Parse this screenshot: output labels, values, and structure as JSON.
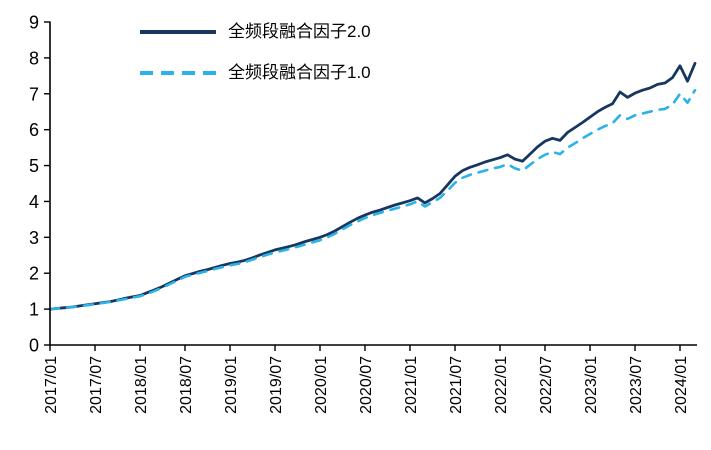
{
  "chart_data": {
    "type": "line",
    "title": "",
    "xlabel": "",
    "ylabel": "",
    "ylim": [
      0,
      9
    ],
    "y_ticks": [
      0,
      1,
      2,
      3,
      4,
      5,
      6,
      7,
      8,
      9
    ],
    "grid": false,
    "legend_position": "top-left",
    "axis_color": "#000000",
    "x": [
      "2017/01",
      "2017/02",
      "2017/03",
      "2017/04",
      "2017/05",
      "2017/06",
      "2017/07",
      "2017/08",
      "2017/09",
      "2017/10",
      "2017/11",
      "2017/12",
      "2018/01",
      "2018/02",
      "2018/03",
      "2018/04",
      "2018/05",
      "2018/06",
      "2018/07",
      "2018/08",
      "2018/09",
      "2018/10",
      "2018/11",
      "2018/12",
      "2019/01",
      "2019/02",
      "2019/03",
      "2019/04",
      "2019/05",
      "2019/06",
      "2019/07",
      "2019/08",
      "2019/09",
      "2019/10",
      "2019/11",
      "2019/12",
      "2020/01",
      "2020/02",
      "2020/03",
      "2020/04",
      "2020/05",
      "2020/06",
      "2020/07",
      "2020/08",
      "2020/09",
      "2020/10",
      "2020/11",
      "2020/12",
      "2021/01",
      "2021/02",
      "2021/03",
      "2021/04",
      "2021/05",
      "2021/06",
      "2021/07",
      "2021/08",
      "2021/09",
      "2021/10",
      "2021/11",
      "2021/12",
      "2022/01",
      "2022/02",
      "2022/03",
      "2022/04",
      "2022/05",
      "2022/06",
      "2022/07",
      "2022/08",
      "2022/09",
      "2022/10",
      "2022/11",
      "2022/12",
      "2023/01",
      "2023/02",
      "2023/03",
      "2023/04",
      "2023/05",
      "2023/06",
      "2023/07",
      "2023/08",
      "2023/09",
      "2023/10",
      "2023/11",
      "2023/12",
      "2024/01",
      "2024/01",
      "2024/02"
    ],
    "x_ticks": [
      "2017/01",
      "2017/07",
      "2018/01",
      "2018/07",
      "2019/01",
      "2019/07",
      "2020/01",
      "2020/07",
      "2021/01",
      "2021/07",
      "2022/01",
      "2022/07",
      "2023/01",
      "2023/07",
      "2024/01"
    ],
    "series": [
      {
        "name": "全频段融合因子2.0",
        "style": "solid",
        "color": "#17375E",
        "values": [
          1.0,
          1.02,
          1.04,
          1.06,
          1.09,
          1.12,
          1.15,
          1.18,
          1.21,
          1.25,
          1.3,
          1.34,
          1.38,
          1.46,
          1.54,
          1.63,
          1.73,
          1.83,
          1.93,
          1.99,
          2.05,
          2.1,
          2.16,
          2.22,
          2.27,
          2.31,
          2.36,
          2.43,
          2.51,
          2.58,
          2.65,
          2.7,
          2.75,
          2.81,
          2.88,
          2.94,
          3.0,
          3.08,
          3.18,
          3.3,
          3.42,
          3.53,
          3.62,
          3.7,
          3.76,
          3.83,
          3.9,
          3.96,
          4.02,
          4.1,
          3.96,
          4.08,
          4.22,
          4.46,
          4.7,
          4.86,
          4.95,
          5.02,
          5.1,
          5.16,
          5.22,
          5.3,
          5.18,
          5.12,
          5.32,
          5.52,
          5.68,
          5.76,
          5.7,
          5.92,
          6.06,
          6.2,
          6.35,
          6.5,
          6.62,
          6.72,
          7.05,
          6.9,
          7.02,
          7.1,
          7.16,
          7.26,
          7.3,
          7.45,
          7.78,
          7.35,
          7.85
        ]
      },
      {
        "name": "全频段融合因子1.0",
        "style": "dashed",
        "color": "#2BB2E8",
        "values": [
          1.0,
          1.02,
          1.04,
          1.06,
          1.08,
          1.11,
          1.14,
          1.17,
          1.2,
          1.24,
          1.28,
          1.32,
          1.36,
          1.43,
          1.51,
          1.6,
          1.7,
          1.8,
          1.9,
          1.96,
          2.01,
          2.06,
          2.12,
          2.17,
          2.22,
          2.26,
          2.31,
          2.38,
          2.45,
          2.52,
          2.58,
          2.63,
          2.68,
          2.74,
          2.8,
          2.86,
          2.92,
          3.0,
          3.1,
          3.22,
          3.34,
          3.44,
          3.54,
          3.62,
          3.68,
          3.74,
          3.8,
          3.86,
          3.92,
          4.0,
          3.86,
          3.98,
          4.1,
          4.3,
          4.52,
          4.66,
          4.74,
          4.8,
          4.86,
          4.92,
          4.96,
          5.04,
          4.92,
          4.86,
          5.02,
          5.18,
          5.3,
          5.38,
          5.32,
          5.5,
          5.62,
          5.76,
          5.88,
          6.0,
          6.1,
          6.18,
          6.4,
          6.3,
          6.4,
          6.45,
          6.5,
          6.55,
          6.58,
          6.7,
          7.0,
          6.75,
          7.1
        ]
      }
    ]
  }
}
